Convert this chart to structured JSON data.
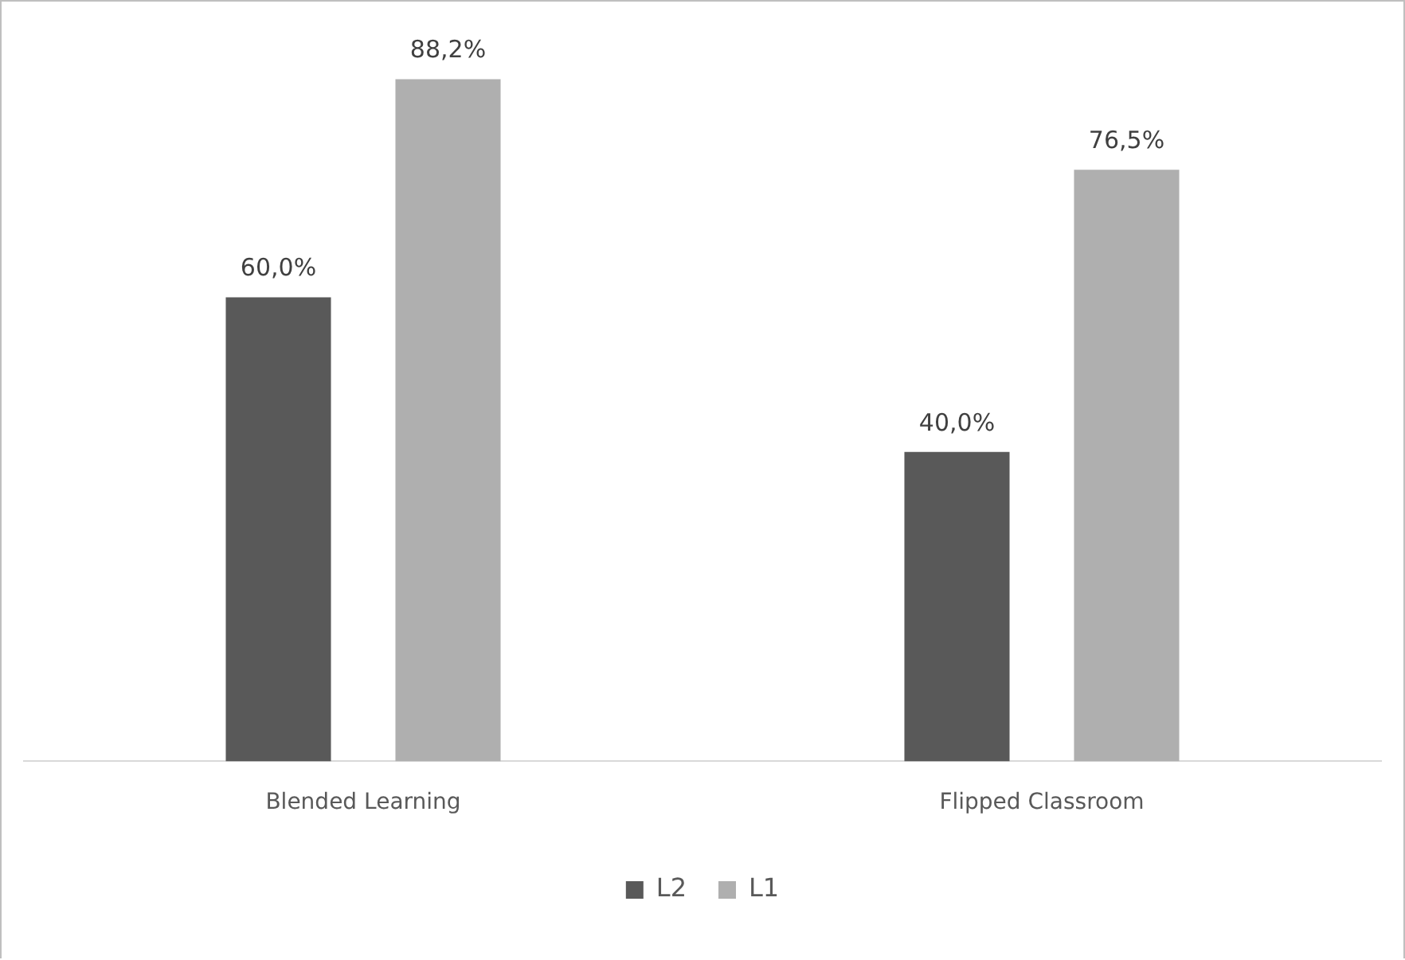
{
  "chart_data": {
    "type": "bar",
    "categories": [
      "Blended Learning",
      "Flipped Classroom"
    ],
    "series": [
      {
        "name": "L2",
        "color": "#595959",
        "values": [
          60.0,
          40.0
        ],
        "value_labels": [
          "60,0%",
          "40,0%"
        ]
      },
      {
        "name": "L1",
        "color": "#afafaf",
        "values": [
          88.2,
          76.5
        ],
        "value_labels": [
          "88,2%",
          "76,5%"
        ]
      }
    ],
    "legend": "bottom",
    "grid": false
  }
}
